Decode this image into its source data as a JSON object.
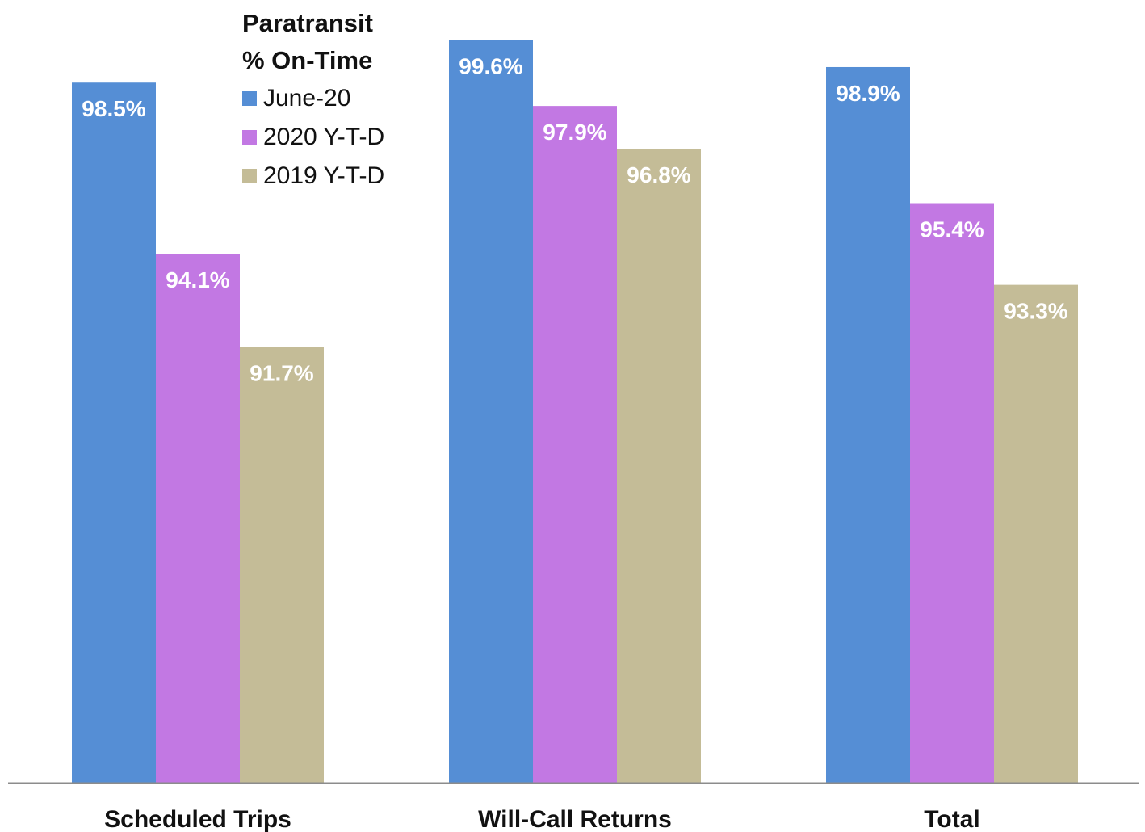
{
  "chart_data": {
    "type": "bar",
    "title": "Paratransit\n% On-Time",
    "categories": [
      "Scheduled Trips",
      "Will-Call Returns",
      "Total"
    ],
    "series": [
      {
        "name": "June-20",
        "color": "#558ed5",
        "values": [
          98.5,
          99.6,
          98.9
        ],
        "labels": [
          "98.5%",
          "99.6%",
          "98.9%"
        ]
      },
      {
        "name": "2020 Y-T-D",
        "color": "#c278e3",
        "values": [
          94.1,
          97.9,
          95.4
        ],
        "labels": [
          "94.1%",
          "97.9%",
          "95.4%"
        ]
      },
      {
        "name": "2019 Y-T-D",
        "color": "#c4bc97",
        "values": [
          91.7,
          96.8,
          93.3
        ],
        "labels": [
          "91.7%",
          "96.8%",
          "93.3%"
        ]
      }
    ],
    "ylim": [
      80.5,
      100
    ],
    "grid": false,
    "legend_position": "top-left"
  },
  "legend": {
    "title_line1": "Paratransit",
    "title_line2": "% On-Time"
  }
}
